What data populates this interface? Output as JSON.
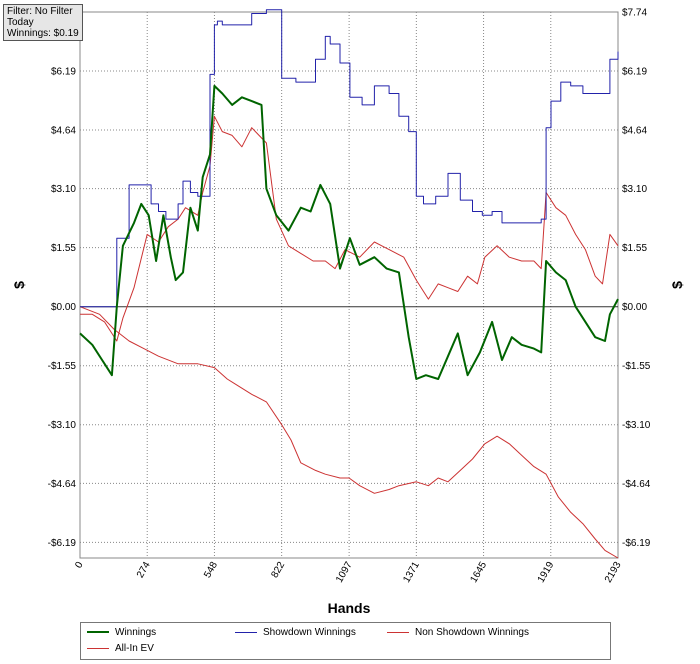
{
  "info": {
    "filter": "Filter: No Filter",
    "period": "Today",
    "winnings": "Winnings: $0.19"
  },
  "chart_data": {
    "type": "line",
    "xlabel": "Hands",
    "ylabel": "$",
    "x_ticks": [
      0,
      274,
      548,
      822,
      1097,
      1371,
      1645,
      1919,
      2193
    ],
    "y_ticks": [
      -6.19,
      -4.64,
      -3.1,
      -1.55,
      0.0,
      1.55,
      3.1,
      4.64,
      6.19,
      7.74
    ],
    "y_tick_labels": [
      "-$6.19",
      "-$4.64",
      "-$3.10",
      "-$1.55",
      "$0.00",
      "$1.55",
      "$3.10",
      "$4.64",
      "$6.19",
      "$7.74"
    ],
    "xlim": [
      0,
      2193
    ],
    "ylim": [
      -6.6,
      7.74
    ],
    "grid": true,
    "legend_position": "bottom",
    "series": [
      {
        "name": "Winnings",
        "color": "#006400",
        "points": [
          [
            0,
            -0.7
          ],
          [
            50,
            -1.0
          ],
          [
            90,
            -1.4
          ],
          [
            130,
            -1.8
          ],
          [
            150,
            0.0
          ],
          [
            175,
            1.6
          ],
          [
            220,
            2.2
          ],
          [
            250,
            2.7
          ],
          [
            280,
            2.4
          ],
          [
            310,
            1.2
          ],
          [
            340,
            2.4
          ],
          [
            370,
            1.3
          ],
          [
            390,
            0.7
          ],
          [
            420,
            0.9
          ],
          [
            450,
            2.6
          ],
          [
            480,
            2.0
          ],
          [
            500,
            3.4
          ],
          [
            530,
            4.0
          ],
          [
            548,
            5.8
          ],
          [
            580,
            5.6
          ],
          [
            620,
            5.3
          ],
          [
            660,
            5.5
          ],
          [
            700,
            5.4
          ],
          [
            740,
            5.3
          ],
          [
            760,
            3.1
          ],
          [
            800,
            2.4
          ],
          [
            850,
            2.0
          ],
          [
            900,
            2.6
          ],
          [
            940,
            2.5
          ],
          [
            980,
            3.2
          ],
          [
            1020,
            2.7
          ],
          [
            1060,
            1.0
          ],
          [
            1100,
            1.8
          ],
          [
            1140,
            1.1
          ],
          [
            1200,
            1.3
          ],
          [
            1250,
            1.0
          ],
          [
            1300,
            0.9
          ],
          [
            1340,
            -0.8
          ],
          [
            1371,
            -1.9
          ],
          [
            1410,
            -1.8
          ],
          [
            1460,
            -1.9
          ],
          [
            1500,
            -1.3
          ],
          [
            1540,
            -0.7
          ],
          [
            1580,
            -1.8
          ],
          [
            1630,
            -1.2
          ],
          [
            1680,
            -0.4
          ],
          [
            1720,
            -1.4
          ],
          [
            1760,
            -0.8
          ],
          [
            1800,
            -1.0
          ],
          [
            1850,
            -1.1
          ],
          [
            1880,
            -1.2
          ],
          [
            1900,
            1.2
          ],
          [
            1940,
            0.9
          ],
          [
            1980,
            0.7
          ],
          [
            2020,
            0.0
          ],
          [
            2060,
            -0.4
          ],
          [
            2100,
            -0.8
          ],
          [
            2140,
            -0.9
          ],
          [
            2160,
            -0.2
          ],
          [
            2193,
            0.2
          ]
        ]
      },
      {
        "name": "Showdown Winnings",
        "color": "#2222aa",
        "points": [
          [
            0,
            0.0
          ],
          [
            130,
            0.0
          ],
          [
            150,
            1.8
          ],
          [
            200,
            3.2
          ],
          [
            260,
            3.2
          ],
          [
            290,
            2.7
          ],
          [
            320,
            2.5
          ],
          [
            350,
            2.3
          ],
          [
            400,
            2.7
          ],
          [
            420,
            3.3
          ],
          [
            450,
            3.0
          ],
          [
            480,
            2.9
          ],
          [
            530,
            6.1
          ],
          [
            548,
            7.4
          ],
          [
            560,
            7.5
          ],
          [
            580,
            7.4
          ],
          [
            620,
            7.4
          ],
          [
            700,
            7.7
          ],
          [
            760,
            7.8
          ],
          [
            822,
            6.0
          ],
          [
            880,
            5.9
          ],
          [
            960,
            6.5
          ],
          [
            1000,
            7.1
          ],
          [
            1020,
            6.9
          ],
          [
            1060,
            6.4
          ],
          [
            1100,
            5.5
          ],
          [
            1150,
            5.3
          ],
          [
            1200,
            5.8
          ],
          [
            1260,
            5.6
          ],
          [
            1300,
            5.0
          ],
          [
            1340,
            4.6
          ],
          [
            1371,
            2.9
          ],
          [
            1400,
            2.7
          ],
          [
            1450,
            2.9
          ],
          [
            1500,
            3.5
          ],
          [
            1550,
            2.8
          ],
          [
            1600,
            2.5
          ],
          [
            1640,
            2.4
          ],
          [
            1680,
            2.5
          ],
          [
            1720,
            2.2
          ],
          [
            1760,
            2.2
          ],
          [
            1800,
            2.2
          ],
          [
            1850,
            2.2
          ],
          [
            1880,
            2.3
          ],
          [
            1900,
            4.7
          ],
          [
            1920,
            5.4
          ],
          [
            1960,
            5.9
          ],
          [
            2000,
            5.8
          ],
          [
            2050,
            5.6
          ],
          [
            2100,
            5.6
          ],
          [
            2140,
            5.6
          ],
          [
            2160,
            6.5
          ],
          [
            2193,
            6.7
          ]
        ]
      },
      {
        "name": "Non Showdown Winnings",
        "color": "#cc3333",
        "points": [
          [
            0,
            -0.2
          ],
          [
            50,
            -0.2
          ],
          [
            100,
            -0.4
          ],
          [
            150,
            -0.9
          ],
          [
            175,
            -0.3
          ],
          [
            220,
            0.5
          ],
          [
            274,
            1.9
          ],
          [
            320,
            1.7
          ],
          [
            360,
            2.1
          ],
          [
            400,
            2.3
          ],
          [
            430,
            2.6
          ],
          [
            480,
            2.4
          ],
          [
            500,
            3.0
          ],
          [
            530,
            3.7
          ],
          [
            548,
            5.0
          ],
          [
            580,
            4.6
          ],
          [
            620,
            4.5
          ],
          [
            660,
            4.2
          ],
          [
            700,
            4.7
          ],
          [
            760,
            4.3
          ],
          [
            800,
            2.3
          ],
          [
            850,
            1.6
          ],
          [
            900,
            1.4
          ],
          [
            950,
            1.2
          ],
          [
            1000,
            1.2
          ],
          [
            1040,
            1.0
          ],
          [
            1080,
            1.5
          ],
          [
            1140,
            1.3
          ],
          [
            1200,
            1.7
          ],
          [
            1260,
            1.5
          ],
          [
            1320,
            1.3
          ],
          [
            1371,
            0.7
          ],
          [
            1420,
            0.2
          ],
          [
            1460,
            0.6
          ],
          [
            1500,
            0.5
          ],
          [
            1540,
            0.4
          ],
          [
            1580,
            0.8
          ],
          [
            1620,
            0.6
          ],
          [
            1650,
            1.3
          ],
          [
            1700,
            1.6
          ],
          [
            1750,
            1.3
          ],
          [
            1800,
            1.2
          ],
          [
            1850,
            1.2
          ],
          [
            1880,
            1.0
          ],
          [
            1900,
            3.0
          ],
          [
            1940,
            2.6
          ],
          [
            1980,
            2.4
          ],
          [
            2020,
            1.9
          ],
          [
            2060,
            1.5
          ],
          [
            2100,
            0.8
          ],
          [
            2130,
            0.6
          ],
          [
            2160,
            1.9
          ],
          [
            2193,
            1.6
          ]
        ]
      },
      {
        "name": "All-In EV",
        "color": "#cc3333",
        "points": [
          [
            0,
            0.0
          ],
          [
            80,
            -0.2
          ],
          [
            140,
            -0.6
          ],
          [
            200,
            -0.9
          ],
          [
            260,
            -1.1
          ],
          [
            320,
            -1.3
          ],
          [
            400,
            -1.5
          ],
          [
            480,
            -1.5
          ],
          [
            548,
            -1.6
          ],
          [
            600,
            -1.9
          ],
          [
            650,
            -2.1
          ],
          [
            700,
            -2.3
          ],
          [
            760,
            -2.5
          ],
          [
            822,
            -3.1
          ],
          [
            860,
            -3.5
          ],
          [
            900,
            -4.1
          ],
          [
            960,
            -4.3
          ],
          [
            1000,
            -4.4
          ],
          [
            1060,
            -4.5
          ],
          [
            1097,
            -4.5
          ],
          [
            1140,
            -4.7
          ],
          [
            1200,
            -4.9
          ],
          [
            1260,
            -4.8
          ],
          [
            1300,
            -4.7
          ],
          [
            1371,
            -4.6
          ],
          [
            1420,
            -4.7
          ],
          [
            1460,
            -4.5
          ],
          [
            1500,
            -4.6
          ],
          [
            1550,
            -4.3
          ],
          [
            1600,
            -4.0
          ],
          [
            1650,
            -3.6
          ],
          [
            1700,
            -3.4
          ],
          [
            1750,
            -3.6
          ],
          [
            1800,
            -3.9
          ],
          [
            1850,
            -4.2
          ],
          [
            1900,
            -4.4
          ],
          [
            1950,
            -5.0
          ],
          [
            2000,
            -5.4
          ],
          [
            2050,
            -5.7
          ],
          [
            2100,
            -6.1
          ],
          [
            2140,
            -6.4
          ],
          [
            2193,
            -6.6
          ]
        ]
      }
    ]
  }
}
